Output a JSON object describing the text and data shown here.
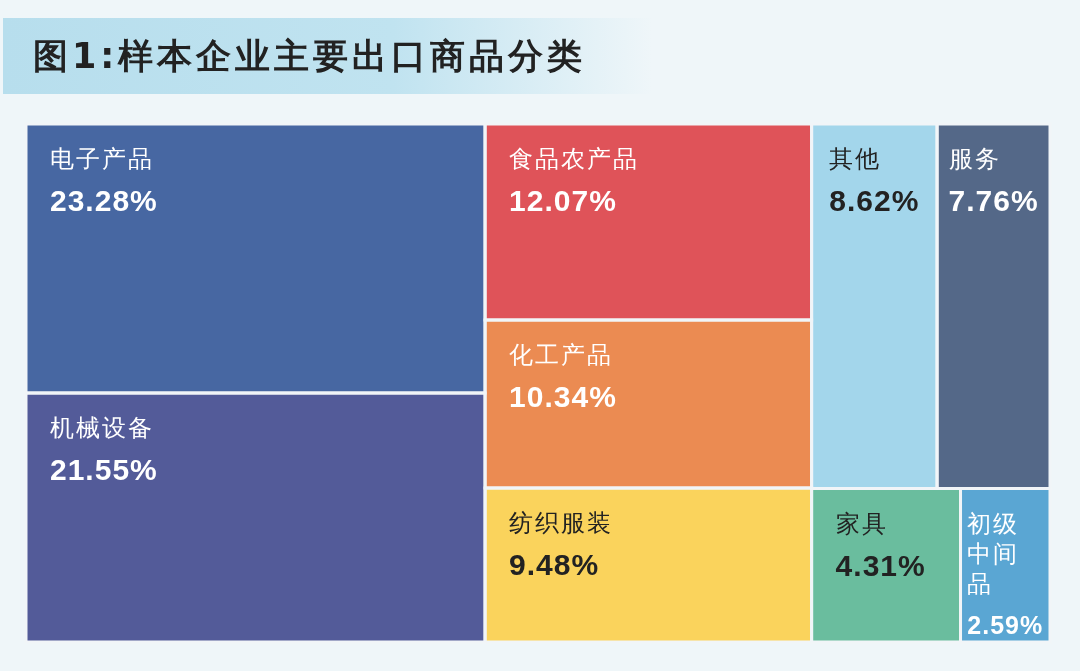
{
  "chart_data": {
    "type": "other",
    "title": "图1:样本企业主要出口商品分类",
    "categories": [
      "电子产品",
      "机械设备",
      "食品农产品",
      "化工产品",
      "纺织服装",
      "其他",
      "服务",
      "家具",
      "初级中间品"
    ],
    "values": [
      23.28,
      21.55,
      12.07,
      10.34,
      9.48,
      8.62,
      7.76,
      4.31,
      2.59
    ],
    "value_labels": [
      "23.28%",
      "21.55%",
      "12.07%",
      "10.34%",
      "9.48%",
      "8.62%",
      "7.76%",
      "4.31%",
      "2.59%"
    ],
    "colors": [
      "#4767a2",
      "#535b99",
      "#df5359",
      "#eb8b52",
      "#fad35c",
      "#a3d6eb",
      "#546888",
      "#6abd9e",
      "#5aa6d3"
    ]
  }
}
